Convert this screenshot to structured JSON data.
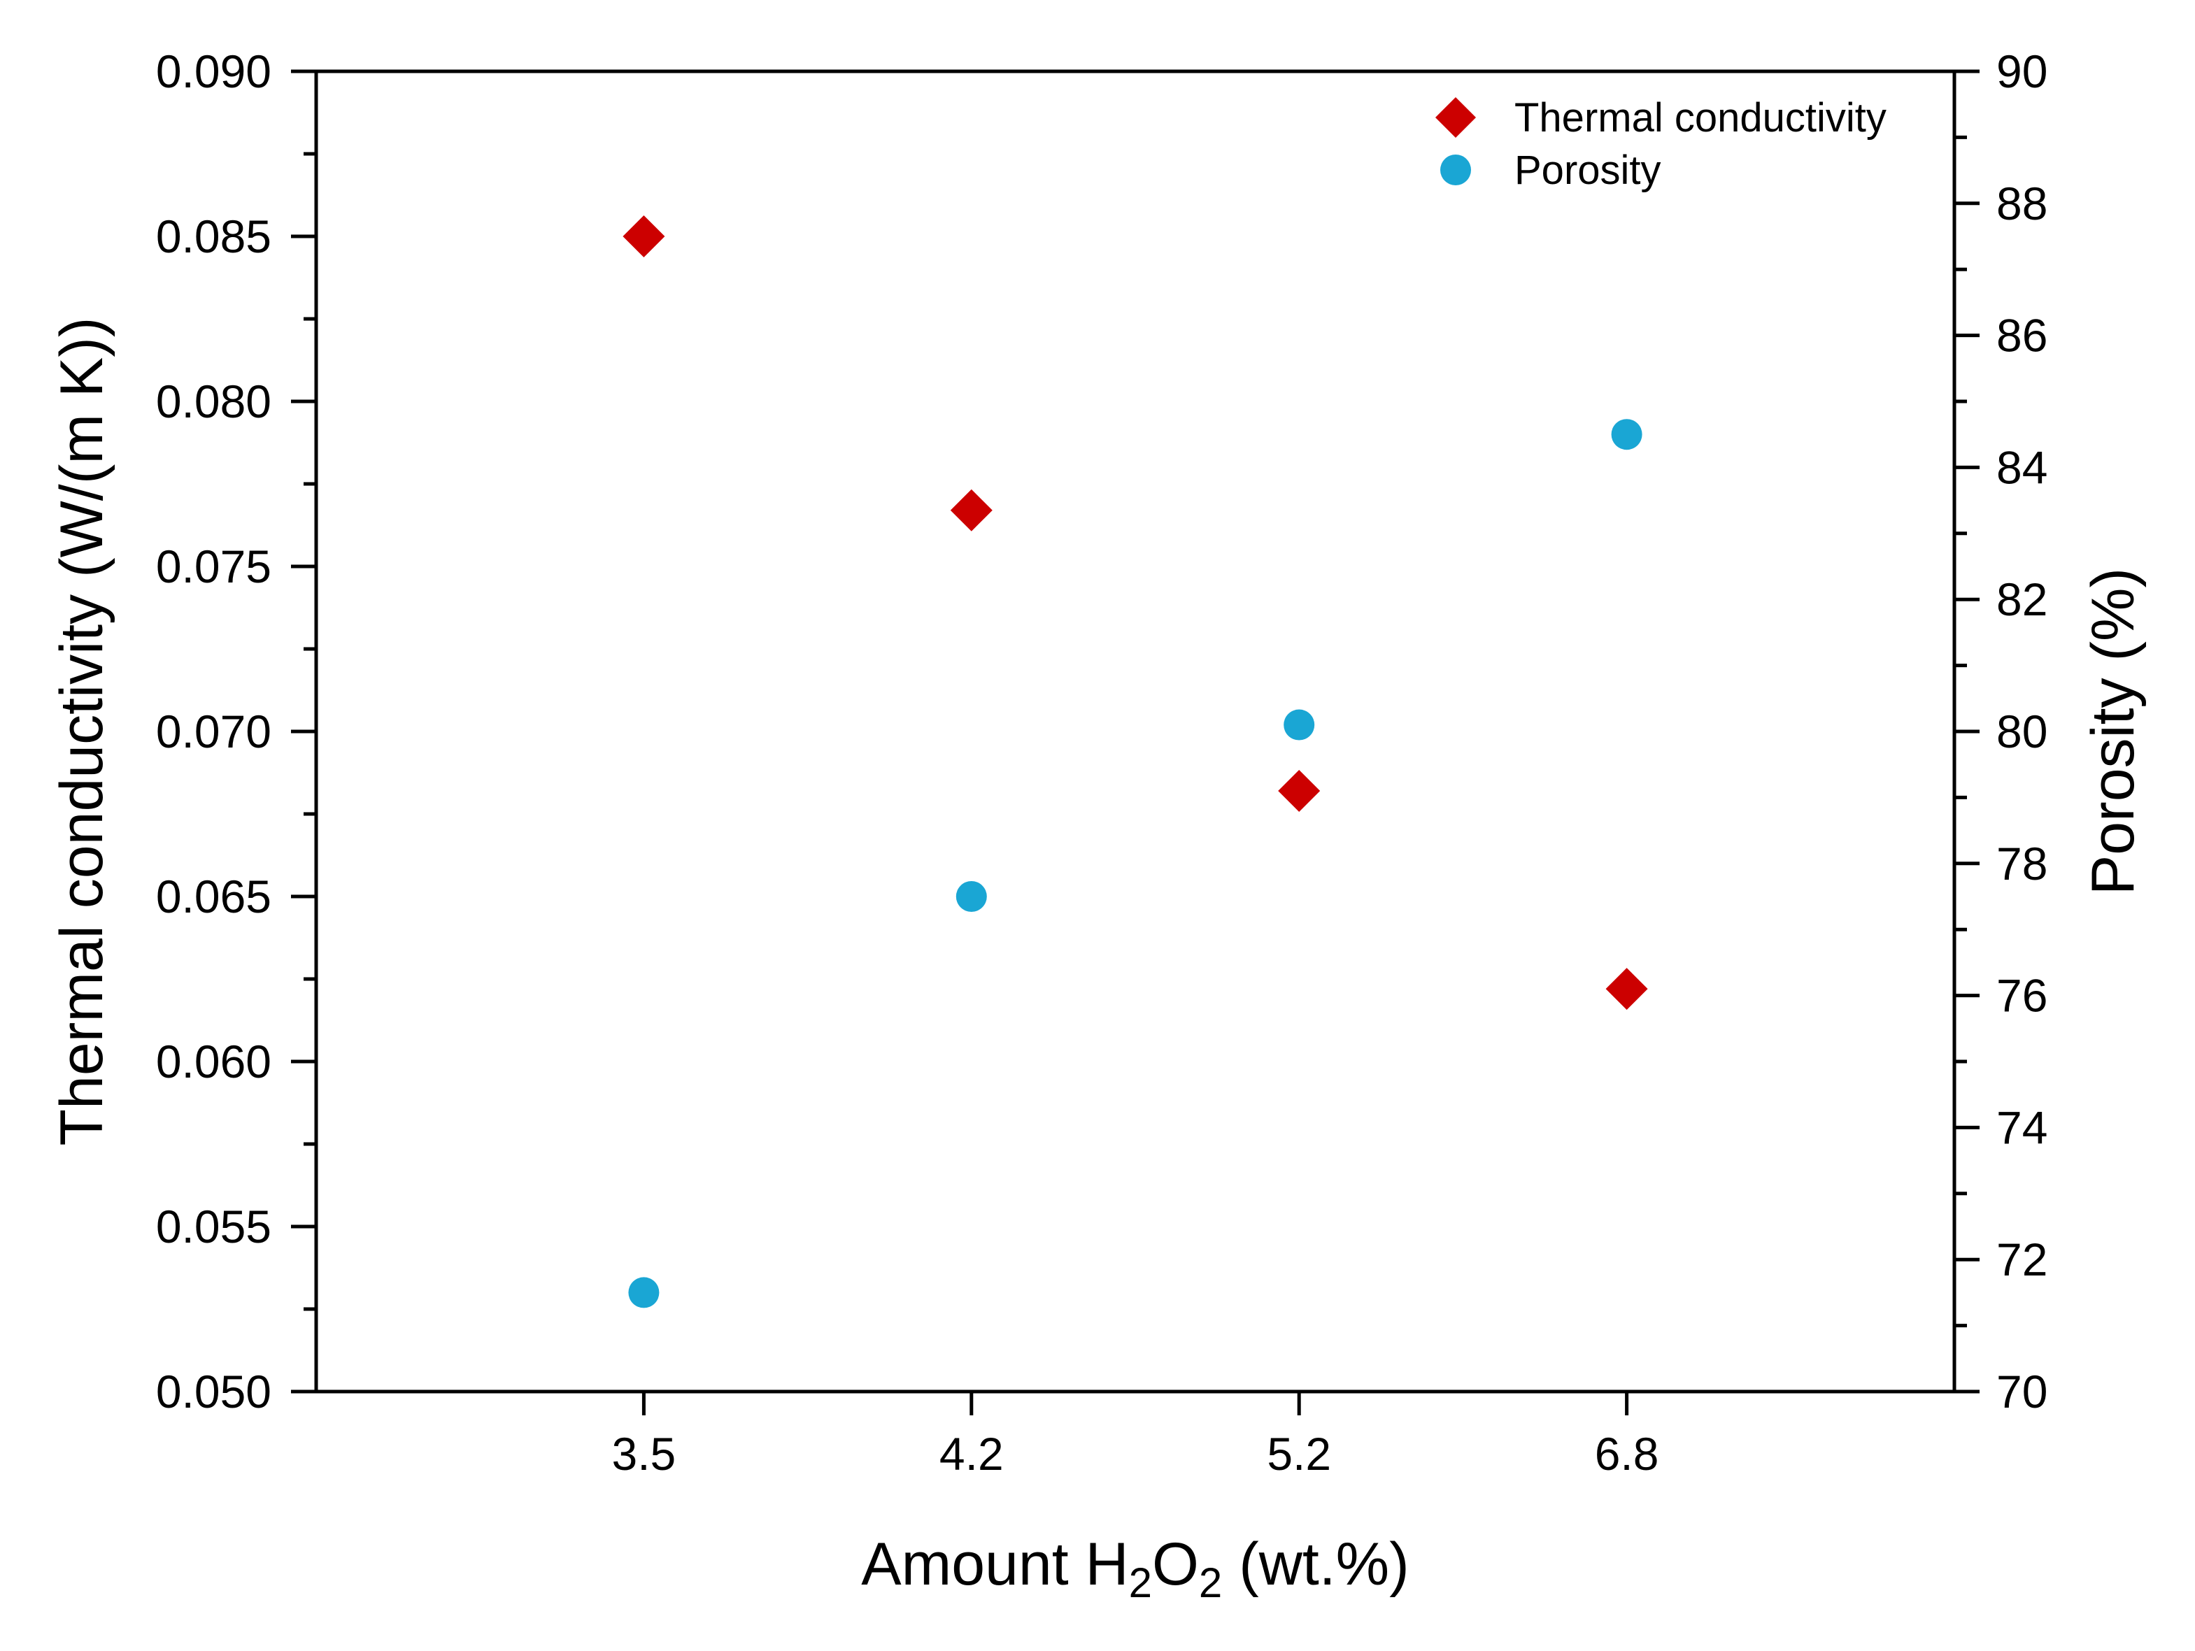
{
  "chart_data": {
    "type": "scatter",
    "x_categories": [
      "3.5",
      "4.2",
      "5.2",
      "6.8"
    ],
    "xlabel_parts": {
      "prefix": "Amount H",
      "sub1": "2",
      "mid": "O",
      "sub2": "2",
      "suffix": " (wt.%)"
    },
    "ylabel_left": "Thermal conductivity (W/(m K))",
    "ylabel_right": "Porosity (%)",
    "ylim_left": [
      0.05,
      0.09
    ],
    "ylim_right": [
      70,
      90
    ],
    "y_left_ticks": [
      "0.050",
      "0.055",
      "0.060",
      "0.065",
      "0.070",
      "0.075",
      "0.080",
      "0.085",
      "0.090"
    ],
    "y_right_ticks": [
      "70",
      "72",
      "74",
      "76",
      "78",
      "80",
      "82",
      "84",
      "86",
      "88",
      "90"
    ],
    "series": [
      {
        "name": "Thermal conductivity",
        "axis": "left",
        "marker": "diamond",
        "color": "#cc0000",
        "values": [
          0.085,
          0.0767,
          0.0682,
          0.0622
        ]
      },
      {
        "name": "Porosity",
        "axis": "right",
        "marker": "circle",
        "color": "#1aa6d4",
        "values": [
          71.5,
          77.5,
          80.1,
          84.5
        ]
      }
    ],
    "legend_position": "top-right",
    "grid": false
  }
}
